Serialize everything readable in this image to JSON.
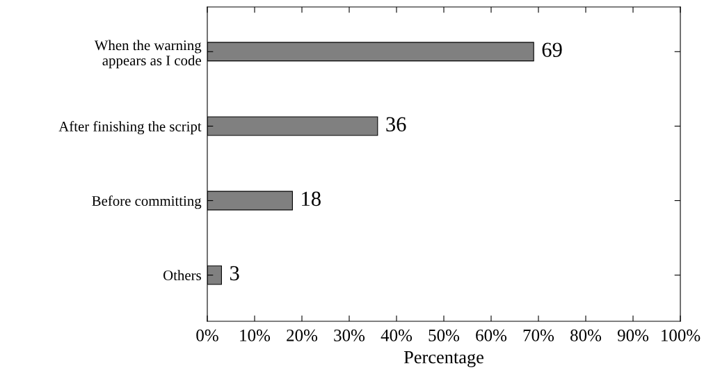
{
  "chart_data": {
    "type": "bar",
    "orientation": "horizontal",
    "xlabel": "Percentage",
    "categories": [
      "When the warning\nappears as I code",
      "After finishing the script",
      "Before committing",
      "Others"
    ],
    "values": [
      69,
      36,
      18,
      3
    ],
    "color": "#808080",
    "data_labels": true,
    "xlim": [
      0,
      100
    ],
    "xticks": [
      {
        "value": 0,
        "label": "0%"
      },
      {
        "value": 10,
        "label": "10%"
      },
      {
        "value": 20,
        "label": "20%"
      },
      {
        "value": 30,
        "label": "30%"
      },
      {
        "value": 40,
        "label": "40%"
      },
      {
        "value": 50,
        "label": "50%"
      },
      {
        "value": 60,
        "label": "60%"
      },
      {
        "value": 70,
        "label": "70%"
      },
      {
        "value": 80,
        "label": "80%"
      },
      {
        "value": 90,
        "label": "90%"
      },
      {
        "value": 100,
        "label": "100%"
      }
    ],
    "grid": false,
    "legend": false
  }
}
